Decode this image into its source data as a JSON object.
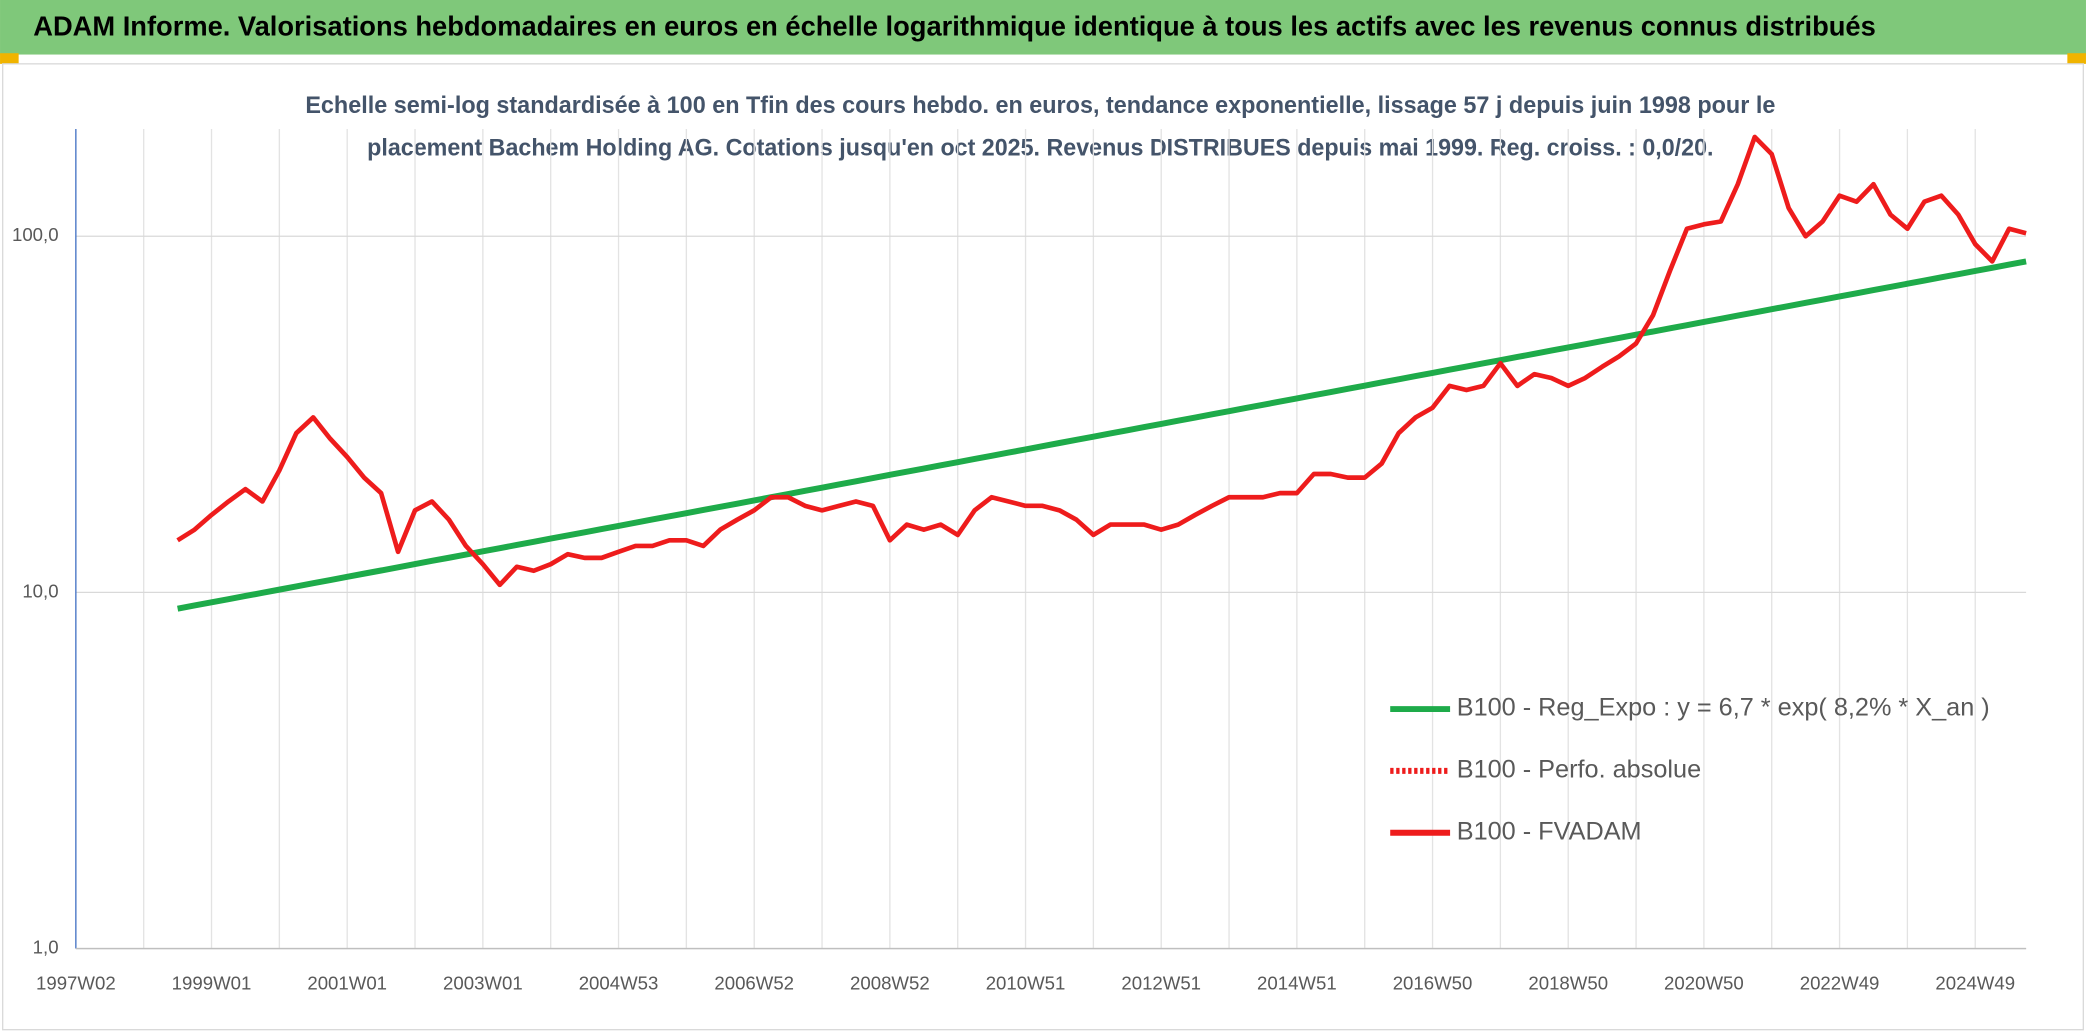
{
  "chart_data": {
    "type": "line",
    "title": "ADAM Informe. Valorisations hebdomadaires en euros en échelle logarithmique identique à tous les actifs avec les revenus connus distribués",
    "subtitle": [
      "Echelle semi-log standardisée à 100 en Tfin des cours hebdo. en euros, tendance exponentielle, lissage 57 j depuis juin 1998 pour le",
      "placement Bachem Holding AG. Cotations jusqu'en oct 2025. Revenus DISTRIBUES depuis mai 1999. Reg. croiss. : 0,0/20."
    ],
    "log_scale": true,
    "grid": true,
    "legend": "right",
    "ylim": [
      1,
      200
    ],
    "yticks": [
      {
        "value": 1,
        "label": "1,0"
      },
      {
        "value": 10,
        "label": "10,0"
      },
      {
        "value": 100,
        "label": "100,0"
      }
    ],
    "categories": [
      "1997W02",
      null,
      null,
      null,
      null,
      null,
      null,
      null,
      "1999W01",
      null,
      null,
      null,
      null,
      null,
      null,
      null,
      "2001W01",
      null,
      null,
      null,
      null,
      null,
      null,
      null,
      "2003W01",
      null,
      null,
      null,
      null,
      null,
      null,
      null,
      "2004W53",
      null,
      null,
      null,
      null,
      null,
      null,
      null,
      "2006W52",
      null,
      null,
      null,
      null,
      null,
      null,
      null,
      "2008W52",
      null,
      null,
      null,
      null,
      null,
      null,
      null,
      "2010W51",
      null,
      null,
      null,
      null,
      null,
      null,
      null,
      "2012W51",
      null,
      null,
      null,
      null,
      null,
      null,
      null,
      "2014W51",
      null,
      null,
      null,
      null,
      null,
      null,
      null,
      "2016W50",
      null,
      null,
      null,
      null,
      null,
      null,
      null,
      "2018W50",
      null,
      null,
      null,
      null,
      null,
      null,
      null,
      "2020W50",
      null,
      null,
      null,
      null,
      null,
      null,
      null,
      "2022W49",
      null,
      null,
      null,
      null,
      null,
      null,
      null,
      "2024W49",
      null,
      null,
      null
    ],
    "series": [
      {
        "name": "B100 - Reg_Expo : y = 6,7 * exp( 8,2% *  X_an )",
        "color": "#1eab4a",
        "dash": "solid",
        "values": [
          null,
          null,
          null,
          null,
          null,
          null,
          9.0,
          9.19,
          9.38,
          9.57,
          9.77,
          9.97,
          10.18,
          10.39,
          10.61,
          10.83,
          11.06,
          11.29,
          11.52,
          11.76,
          12.01,
          12.26,
          12.51,
          12.77,
          13.04,
          13.31,
          13.59,
          13.87,
          14.16,
          14.45,
          14.75,
          15.06,
          15.37,
          15.69,
          16.02,
          16.35,
          16.69,
          17.04,
          17.39,
          17.75,
          18.12,
          18.5,
          18.89,
          19.28,
          19.68,
          20.09,
          20.51,
          20.94,
          21.38,
          21.82,
          22.27,
          22.74,
          23.21,
          23.69,
          24.19,
          24.69,
          25.2,
          25.73,
          26.27,
          26.81,
          27.37,
          27.94,
          28.52,
          29.12,
          29.72,
          30.34,
          30.97,
          31.62,
          32.27,
          32.95,
          33.63,
          34.33,
          35.05,
          35.78,
          36.52,
          37.28,
          38.06,
          38.85,
          39.66,
          40.49,
          41.33,
          42.19,
          43.07,
          43.96,
          44.88,
          45.81,
          46.76,
          47.74,
          48.73,
          49.74,
          50.78,
          51.83,
          52.91,
          54.01,
          55.14,
          56.28,
          57.46,
          58.65,
          59.87,
          61.12,
          62.39,
          63.69,
          65.02,
          66.37,
          67.75,
          69.16,
          70.6,
          72.07,
          73.57,
          75.1,
          76.66,
          78.26,
          79.89,
          81.55,
          83.25,
          84.98
        ]
      },
      {
        "name": "B100 - Perfo. absolue",
        "color": "#ee1c1c",
        "dash": "dotted",
        "values": [
          null,
          null,
          null,
          null,
          null,
          null,
          null,
          null,
          null,
          null,
          null,
          null,
          null,
          null,
          null,
          null,
          null,
          null,
          null,
          null,
          null,
          null,
          null,
          null,
          null,
          null,
          null,
          null,
          null,
          null,
          null,
          null,
          null,
          null,
          null,
          null,
          null,
          null,
          null,
          null,
          null,
          null,
          null,
          null,
          null,
          null,
          null,
          null,
          null,
          null,
          null,
          null,
          null,
          null,
          null,
          null,
          null,
          null,
          null,
          null,
          null,
          null,
          null,
          null,
          null,
          null,
          null,
          null,
          null,
          null,
          null,
          null,
          null,
          null,
          null,
          null,
          null,
          null,
          null,
          null,
          null,
          null,
          null,
          null,
          null,
          null,
          null,
          null,
          null,
          null,
          null,
          null,
          null,
          null,
          null,
          null,
          null,
          null,
          null,
          null,
          null,
          null,
          null,
          null,
          null,
          null,
          null,
          null,
          null,
          null,
          null,
          null,
          null,
          null,
          null,
          null
        ]
      },
      {
        "name": "B100 - FVADAM",
        "color": "#ee1c1c",
        "dash": "solid",
        "values": [
          null,
          null,
          null,
          null,
          null,
          null,
          14,
          15,
          16.5,
          18,
          19.5,
          18,
          22,
          28,
          31,
          27,
          24,
          21,
          19,
          13,
          17,
          18,
          16,
          13.5,
          12,
          10.5,
          11.8,
          11.5,
          12,
          12.8,
          12.5,
          12.5,
          13,
          13.5,
          13.5,
          14,
          14,
          13.5,
          15,
          16,
          17,
          18.5,
          18.5,
          17.5,
          17,
          17.5,
          18,
          17.5,
          14,
          15.5,
          15,
          15.5,
          14.5,
          17,
          18.5,
          18,
          17.5,
          17.5,
          17,
          16,
          14.5,
          15.5,
          15.5,
          15.5,
          15,
          15.5,
          16.5,
          17.5,
          18.5,
          18.5,
          18.5,
          19,
          19,
          21.5,
          21.5,
          21,
          21,
          23,
          28,
          31,
          33,
          38,
          37,
          38,
          44,
          38,
          41,
          40,
          38,
          40,
          43,
          46,
          50,
          60,
          80,
          105,
          108,
          110,
          140,
          190,
          170,
          120,
          100,
          110,
          130,
          125,
          140,
          115,
          105,
          125,
          130,
          115,
          95,
          85,
          105,
          102
        ]
      }
    ]
  }
}
